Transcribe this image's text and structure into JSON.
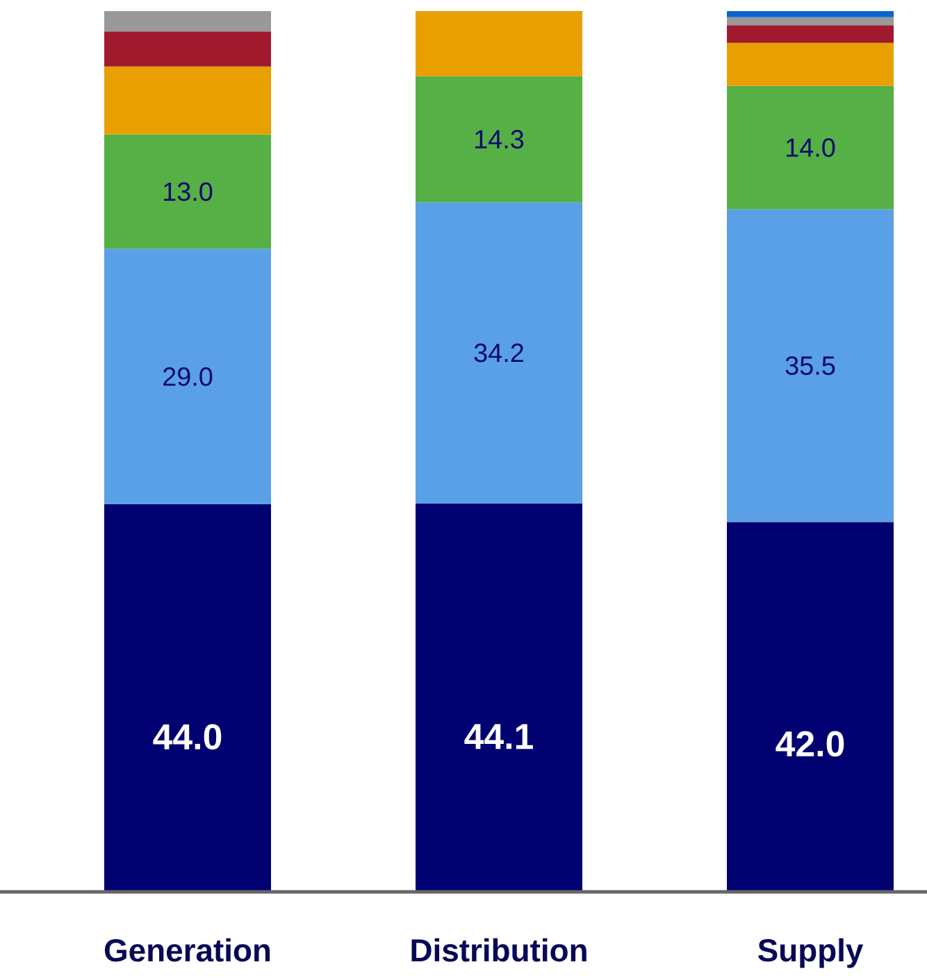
{
  "chart_data": {
    "type": "bar",
    "stacked": true,
    "categories": [
      "Generation",
      "Distribution",
      "Supply"
    ],
    "series": [
      {
        "color": "#000070",
        "values": [
          44.0,
          44.1,
          42.0
        ],
        "value_labels": [
          "44.0",
          "44.1",
          "42.0"
        ]
      },
      {
        "color": "#5aa0e6",
        "values": [
          29.0,
          34.2,
          35.5
        ],
        "value_labels": [
          "29.0",
          "34.2",
          "35.5"
        ]
      },
      {
        "color": "#56b046",
        "values": [
          13.0,
          14.3,
          14.0
        ],
        "value_labels": [
          "13.0",
          "14.3",
          "14.0"
        ]
      },
      {
        "color": "#e8a000",
        "values": [
          7.7,
          7.4,
          4.9
        ]
      },
      {
        "color": "#a01a2e",
        "values": [
          4.0,
          null,
          2.0
        ]
      },
      {
        "color": "#999999",
        "values": [
          2.3,
          null,
          0.9
        ]
      },
      {
        "color": "#0a64d2",
        "values": [
          null,
          null,
          0.7
        ]
      }
    ]
  }
}
